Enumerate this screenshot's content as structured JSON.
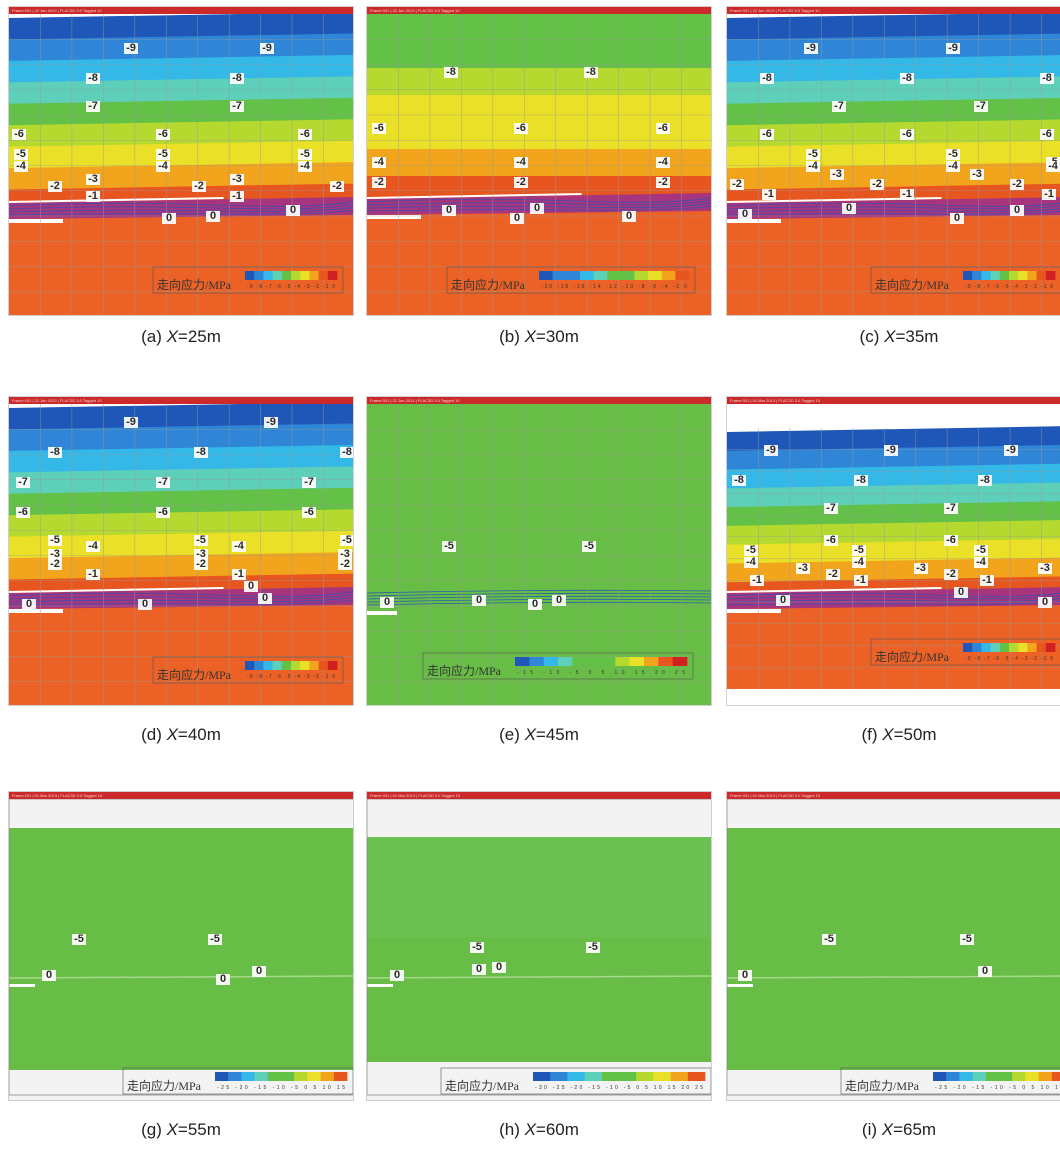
{
  "colors": {
    "header": "#cc2a2a",
    "band_top": "#1f57b8",
    "band_blue": "#2f86d6",
    "band_cyan": "#33b8e8",
    "band_teal": "#5ecfb8",
    "band_green": "#62c146",
    "band_yellowgreen": "#b6d930",
    "band_yellow": "#eae027",
    "band_orange": "#f2a41c",
    "band_red": "#e8561f",
    "lower_orange": "#ec6226",
    "uniform_green": "#67bd45",
    "zero_band": "#9a2f8e",
    "grid": "#9a9a9a"
  },
  "legend_title": "走向应力/MPa",
  "panels": [
    {
      "caption_prefix": "(a)",
      "caption_var": "X",
      "caption_value": "=25m",
      "kind": "banded",
      "header": "Frame 001 | 22 Jan 2013 | FLAC3D 3.0 Tagged 10",
      "labels": [
        "-9",
        "-9",
        "-8",
        "-8",
        "-7",
        "-7",
        "-6",
        "-6",
        "-6",
        "-5",
        "-5",
        "-5",
        "-4",
        "-4",
        "-4",
        "-3",
        "-3",
        "-2",
        "-2",
        "-2",
        "-1",
        "-1",
        "0",
        "0",
        "0"
      ],
      "legend_ticks": "-9 -8 -7 -6 -5 -4 -3 -2 -1 0"
    },
    {
      "caption_prefix": "(b)",
      "caption_var": "X",
      "caption_value": "=30m",
      "kind": "banded_b",
      "header": "Frame 001 | 22 Jan 2013 | FLAC3D 3.0 Tagged 10",
      "labels": [
        "-8",
        "-8",
        "-6",
        "-6",
        "-6",
        "-4",
        "-4",
        "-4",
        "-2",
        "-2",
        "-2",
        "0",
        "0",
        "0",
        "0"
      ],
      "legend_ticks": "-20 -18 -16 -14 -12 -10 -8 -6 -4 -2 0"
    },
    {
      "caption_prefix": "(c)",
      "caption_var": "X",
      "caption_value": "=35m",
      "kind": "banded",
      "header": "Frame 001 | 22 Jan 2013 | FLAC3D 3.0 Tagged 10",
      "labels": [
        "-9",
        "-9",
        "-8",
        "-8",
        "-8",
        "-7",
        "-7",
        "-6",
        "-6",
        "-6",
        "-5",
        "-5",
        "-5",
        "-4",
        "-4",
        "-4",
        "-3",
        "-3",
        "-2",
        "-2",
        "-2",
        "-1",
        "-1",
        "-1",
        "0",
        "0",
        "0",
        "0"
      ],
      "legend_ticks": "-9 -8 -7 -6 -5 -4 -3 -2 -1 0"
    },
    {
      "caption_prefix": "(d)",
      "caption_var": "X",
      "caption_value": "=40m",
      "kind": "banded",
      "header": "Frame 001 | 22 Jan 2013 | FLAC3D 3.0 Tagged 10",
      "labels": [
        "-9",
        "-9",
        "-8",
        "-8",
        "-8",
        "-7",
        "-7",
        "-7",
        "-6",
        "-6",
        "-6",
        "-5",
        "-5",
        "-5",
        "-4",
        "-4",
        "-3",
        "-3",
        "-3",
        "-2",
        "-2",
        "-2",
        "-1",
        "-1",
        "0",
        "0",
        "0",
        "0"
      ],
      "legend_ticks": "-9 -8 -7 -6 -5 -4 -3 -2 -1 0"
    },
    {
      "caption_prefix": "(e)",
      "caption_var": "X",
      "caption_value": "=45m",
      "kind": "green",
      "header": "Frame 001 | 22 Jan 2013 | FLAC3D 3.0 Tagged 10",
      "labels": [
        "-5",
        "-5",
        "0",
        "0",
        "0",
        "0"
      ],
      "legend_ticks": "-15 -10 -5 0 5 10 15 20 25"
    },
    {
      "caption_prefix": "(f)",
      "caption_var": "X",
      "caption_value": "=50m",
      "kind": "banded_f",
      "header": "Frame 001 | 01 Mar 2013 | FLAC3D 3.0 Tagged 10",
      "labels": [
        "-9",
        "-9",
        "-9",
        "-8",
        "-8",
        "-8",
        "-7",
        "-7",
        "-6",
        "-6",
        "-5",
        "-5",
        "-5",
        "-4",
        "-4",
        "-4",
        "-3",
        "-3",
        "-3",
        "-2",
        "-2",
        "-1",
        "-1",
        "-1",
        "0",
        "0",
        "0"
      ],
      "legend_ticks": "-9 -8 -7 -6 -5 -4 -3 -2 -1 0"
    },
    {
      "caption_prefix": "(g)",
      "caption_var": "X",
      "caption_value": "=55m",
      "kind": "green_box",
      "header": "Frame 001 | 01 Mar 2013 | FLAC3D 3.0 Tagged 10",
      "labels": [
        "-5",
        "-5",
        "0",
        "0",
        "0"
      ],
      "legend_ticks": "-25 -20 -15 -10 -5 0 5 10 15"
    },
    {
      "caption_prefix": "(h)",
      "caption_var": "X",
      "caption_value": "=60m",
      "kind": "green_box_h",
      "header": "Frame 001 | 01 Mar 2013 | FLAC3D 3.0 Tagged 10",
      "labels": [
        "-5",
        "-5",
        "0",
        "0",
        "0"
      ],
      "legend_ticks": "-30 -25 -20 -15 -10 -5 0 5 10 15 20 25"
    },
    {
      "caption_prefix": "(i)",
      "caption_var": "X",
      "caption_value": "=65m",
      "kind": "green_box",
      "header": "Frame 001 | 01 Mar 2013 | FLAC3D 3.0 Tagged 10",
      "labels": [
        "-5",
        "-5",
        "0",
        "0"
      ],
      "legend_ticks": "-25 -20 -15 -10 -5 0 5 10 15"
    }
  ]
}
